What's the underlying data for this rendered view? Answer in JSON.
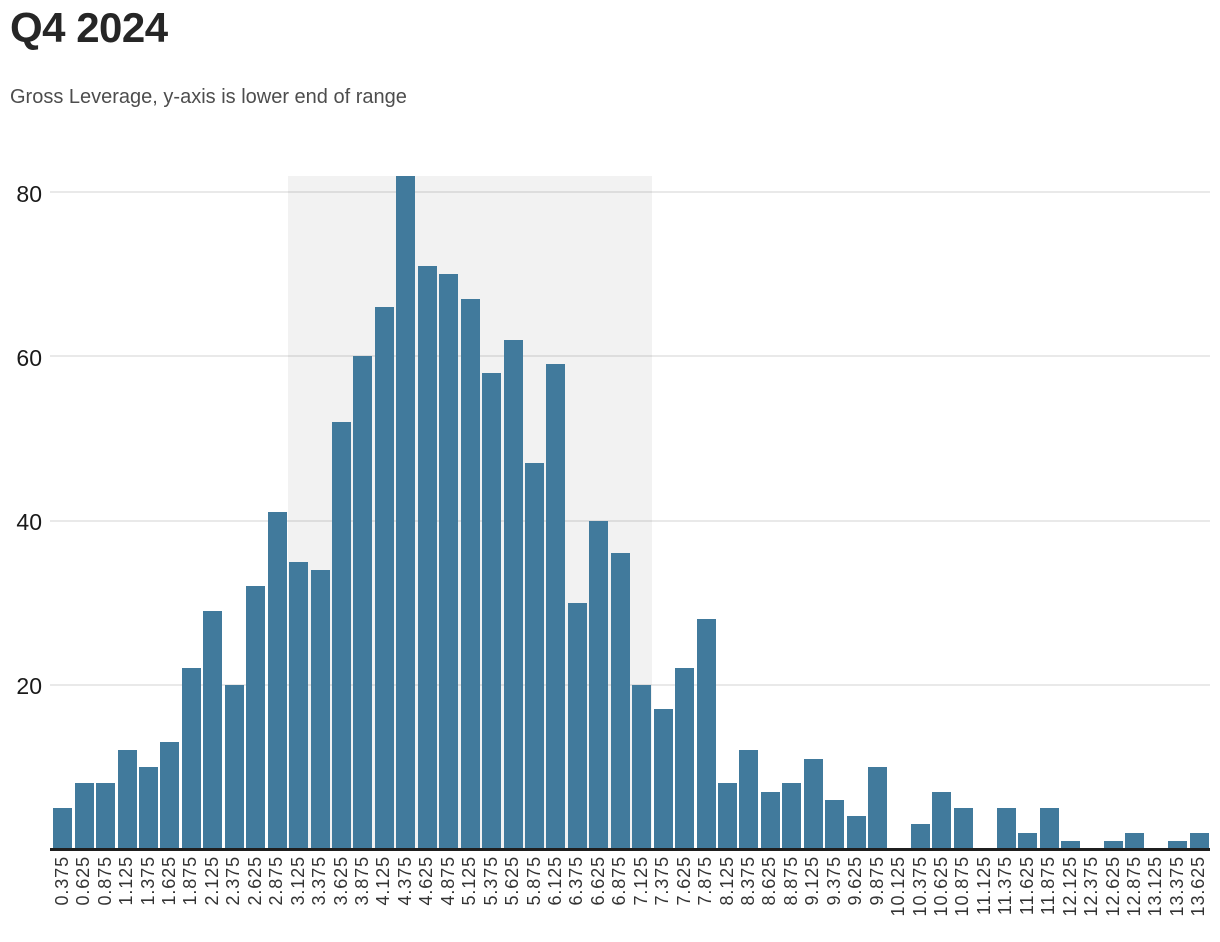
{
  "chart_data": {
    "type": "bar",
    "title": "Q4 2024",
    "subtitle": "Gross Leverage, y-axis is lower end of range",
    "xlabel": "",
    "ylabel": "",
    "categories": [
      "0.375",
      "0.625",
      "0.875",
      "1.125",
      "1.375",
      "1.625",
      "1.875",
      "2.125",
      "2.375",
      "2.625",
      "2.875",
      "3.125",
      "3.375",
      "3.625",
      "3.875",
      "4.125",
      "4.375",
      "4.625",
      "4.875",
      "5.125",
      "5.375",
      "5.625",
      "5.875",
      "6.125",
      "6.375",
      "6.625",
      "6.875",
      "7.125",
      "7.375",
      "7.625",
      "7.875",
      "8.125",
      "8.375",
      "8.625",
      "8.875",
      "9.125",
      "9.375",
      "9.625",
      "9.875",
      "10.125",
      "10.375",
      "10.625",
      "10.875",
      "11.125",
      "11.375",
      "11.625",
      "11.875",
      "12.125",
      "12.375",
      "12.625",
      "12.875",
      "13.125",
      "13.375",
      "13.625"
    ],
    "values": [
      5,
      8,
      8,
      12,
      10,
      13,
      22,
      29,
      20,
      32,
      41,
      35,
      34,
      52,
      60,
      66,
      82,
      71,
      70,
      67,
      58,
      62,
      47,
      59,
      30,
      40,
      36,
      20,
      17,
      22,
      28,
      8,
      12,
      7,
      8,
      11,
      6,
      4,
      10,
      0,
      3,
      7,
      5,
      0,
      5,
      2,
      5,
      1,
      0,
      1,
      2,
      0,
      1,
      2
    ],
    "ylim": [
      0,
      82
    ],
    "yticks": [
      20,
      40,
      60,
      80
    ],
    "grid": "horizontal gridlines at yticks, no vertical grid",
    "legend": "none",
    "bar_color": "#417a9c",
    "axis_color": "#1f1f1f",
    "highlight_region": {
      "from_category": "3.125",
      "to_category": "7.125",
      "top_value": 82,
      "color": "#f2f2f2"
    },
    "x_tick_label_style": "rotated vertical, reads bottom-to-top"
  }
}
